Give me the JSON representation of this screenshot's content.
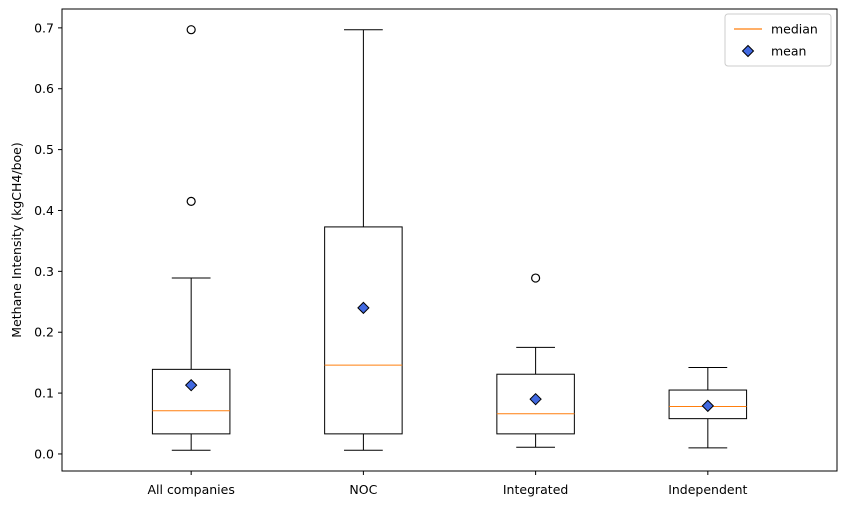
{
  "chart_data": {
    "type": "box",
    "title": "",
    "xlabel": "",
    "ylabel": "Methane Intensity (kgCH4/boe)",
    "ylim": [
      -0.028,
      0.731
    ],
    "yticks": [
      0.0,
      0.1,
      0.2,
      0.3,
      0.4,
      0.5,
      0.6,
      0.7
    ],
    "ytick_labels": [
      "0.0",
      "0.1",
      "0.2",
      "0.3",
      "0.4",
      "0.5",
      "0.6",
      "0.7"
    ],
    "grid": false,
    "legend_position": "top-right",
    "legend": [
      {
        "label": "median",
        "marker": "line",
        "color": "#ff7f0e"
      },
      {
        "label": "mean",
        "marker": "diamond",
        "color": "#4169e1"
      }
    ],
    "categories": [
      "All companies",
      "NOC",
      "Integrated",
      "Independent"
    ],
    "boxes": [
      {
        "whisker_low": 0.006,
        "q1": 0.033,
        "median": 0.071,
        "q3": 0.139,
        "whisker_high": 0.289,
        "mean": 0.113,
        "outliers": [
          0.415,
          0.697
        ]
      },
      {
        "whisker_low": 0.006,
        "q1": 0.033,
        "median": 0.146,
        "q3": 0.373,
        "whisker_high": 0.697,
        "mean": 0.24,
        "outliers": []
      },
      {
        "whisker_low": 0.011,
        "q1": 0.033,
        "median": 0.066,
        "q3": 0.131,
        "whisker_high": 0.175,
        "mean": 0.09,
        "outliers": [
          0.289
        ]
      },
      {
        "whisker_low": 0.01,
        "q1": 0.058,
        "median": 0.078,
        "q3": 0.105,
        "whisker_high": 0.142,
        "mean": 0.079,
        "outliers": []
      }
    ],
    "colors": {
      "box": "#000000",
      "median": "#ff7f0e",
      "mean_fill": "#4169e1",
      "mean_edge": "#000000"
    }
  }
}
